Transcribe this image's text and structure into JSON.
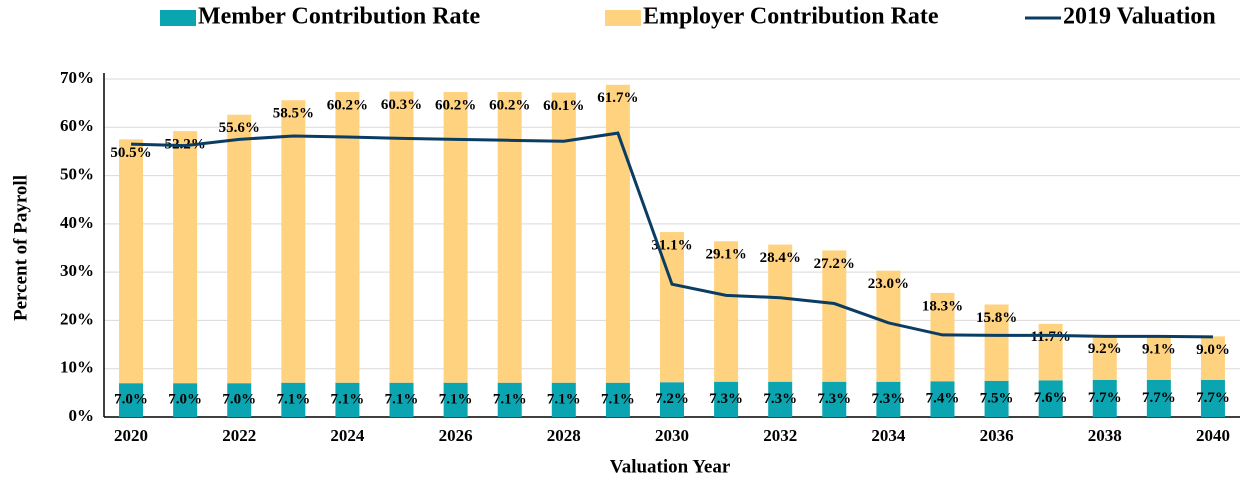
{
  "chart_data": {
    "type": "bar",
    "stacked": true,
    "x_label": "Valuation Year",
    "y_label": "Percent of Payroll",
    "categories": [
      "2020",
      null,
      "2022",
      null,
      "2024",
      null,
      "2026",
      null,
      "2028",
      null,
      "2030",
      null,
      "2032",
      null,
      "2034",
      null,
      "2036",
      null,
      "2038",
      null,
      "2040"
    ],
    "series": [
      {
        "name": "Member Contribution Rate",
        "color": "#0aa5b0",
        "type": "bar",
        "values": [
          7.0,
          7.0,
          7.0,
          7.1,
          7.1,
          7.1,
          7.1,
          7.1,
          7.1,
          7.1,
          7.2,
          7.3,
          7.3,
          7.3,
          7.3,
          7.4,
          7.5,
          7.6,
          7.7,
          7.7,
          7.7
        ],
        "value_labels": [
          "7.0%",
          "7.0%",
          "7.0%",
          "7.1%",
          "7.1%",
          "7.1%",
          "7.1%",
          "7.1%",
          "7.1%",
          "7.1%",
          "7.2%",
          "7.3%",
          "7.3%",
          "7.3%",
          "7.3%",
          "7.4%",
          "7.5%",
          "7.6%",
          "7.7%",
          "7.7%",
          "7.7%"
        ]
      },
      {
        "name": "Employer Contribution Rate",
        "color": "#ffd27f",
        "type": "bar",
        "values": [
          50.5,
          52.2,
          55.6,
          58.5,
          60.2,
          60.3,
          60.2,
          60.2,
          60.1,
          61.7,
          31.1,
          29.1,
          28.4,
          27.2,
          23.0,
          18.3,
          15.8,
          11.7,
          9.2,
          9.1,
          9.0
        ],
        "value_labels": [
          "50.5%",
          "52.2%",
          "55.6%",
          "58.5%",
          "60.2%",
          "60.3%",
          "60.2%",
          "60.2%",
          "60.1%",
          "61.7%",
          "31.1%",
          "29.1%",
          "28.4%",
          "27.2%",
          "23.0%",
          "18.3%",
          "15.8%",
          "11.7%",
          "9.2%",
          "9.1%",
          "9.0%"
        ]
      },
      {
        "name": "2019 Valuation",
        "color": "#0b3d63",
        "type": "line",
        "values": [
          56.5,
          56.2,
          57.5,
          58.2,
          58.0,
          57.7,
          57.5,
          57.3,
          57.1,
          58.8,
          27.5,
          25.2,
          24.7,
          23.5,
          19.5,
          17.0,
          16.9,
          16.9,
          16.7,
          16.7,
          16.6
        ]
      }
    ],
    "ylim": [
      0,
      70
    ],
    "yticks": [
      {
        "value": 0,
        "label": "0%"
      },
      {
        "value": 10,
        "label": "10%"
      },
      {
        "value": 20,
        "label": "20%"
      },
      {
        "value": 30,
        "label": "30%"
      },
      {
        "value": 40,
        "label": "40%"
      },
      {
        "value": 50,
        "label": "50%"
      },
      {
        "value": 60,
        "label": "60%"
      },
      {
        "value": 70,
        "label": "70%"
      }
    ],
    "grid": true,
    "legend": "top"
  }
}
